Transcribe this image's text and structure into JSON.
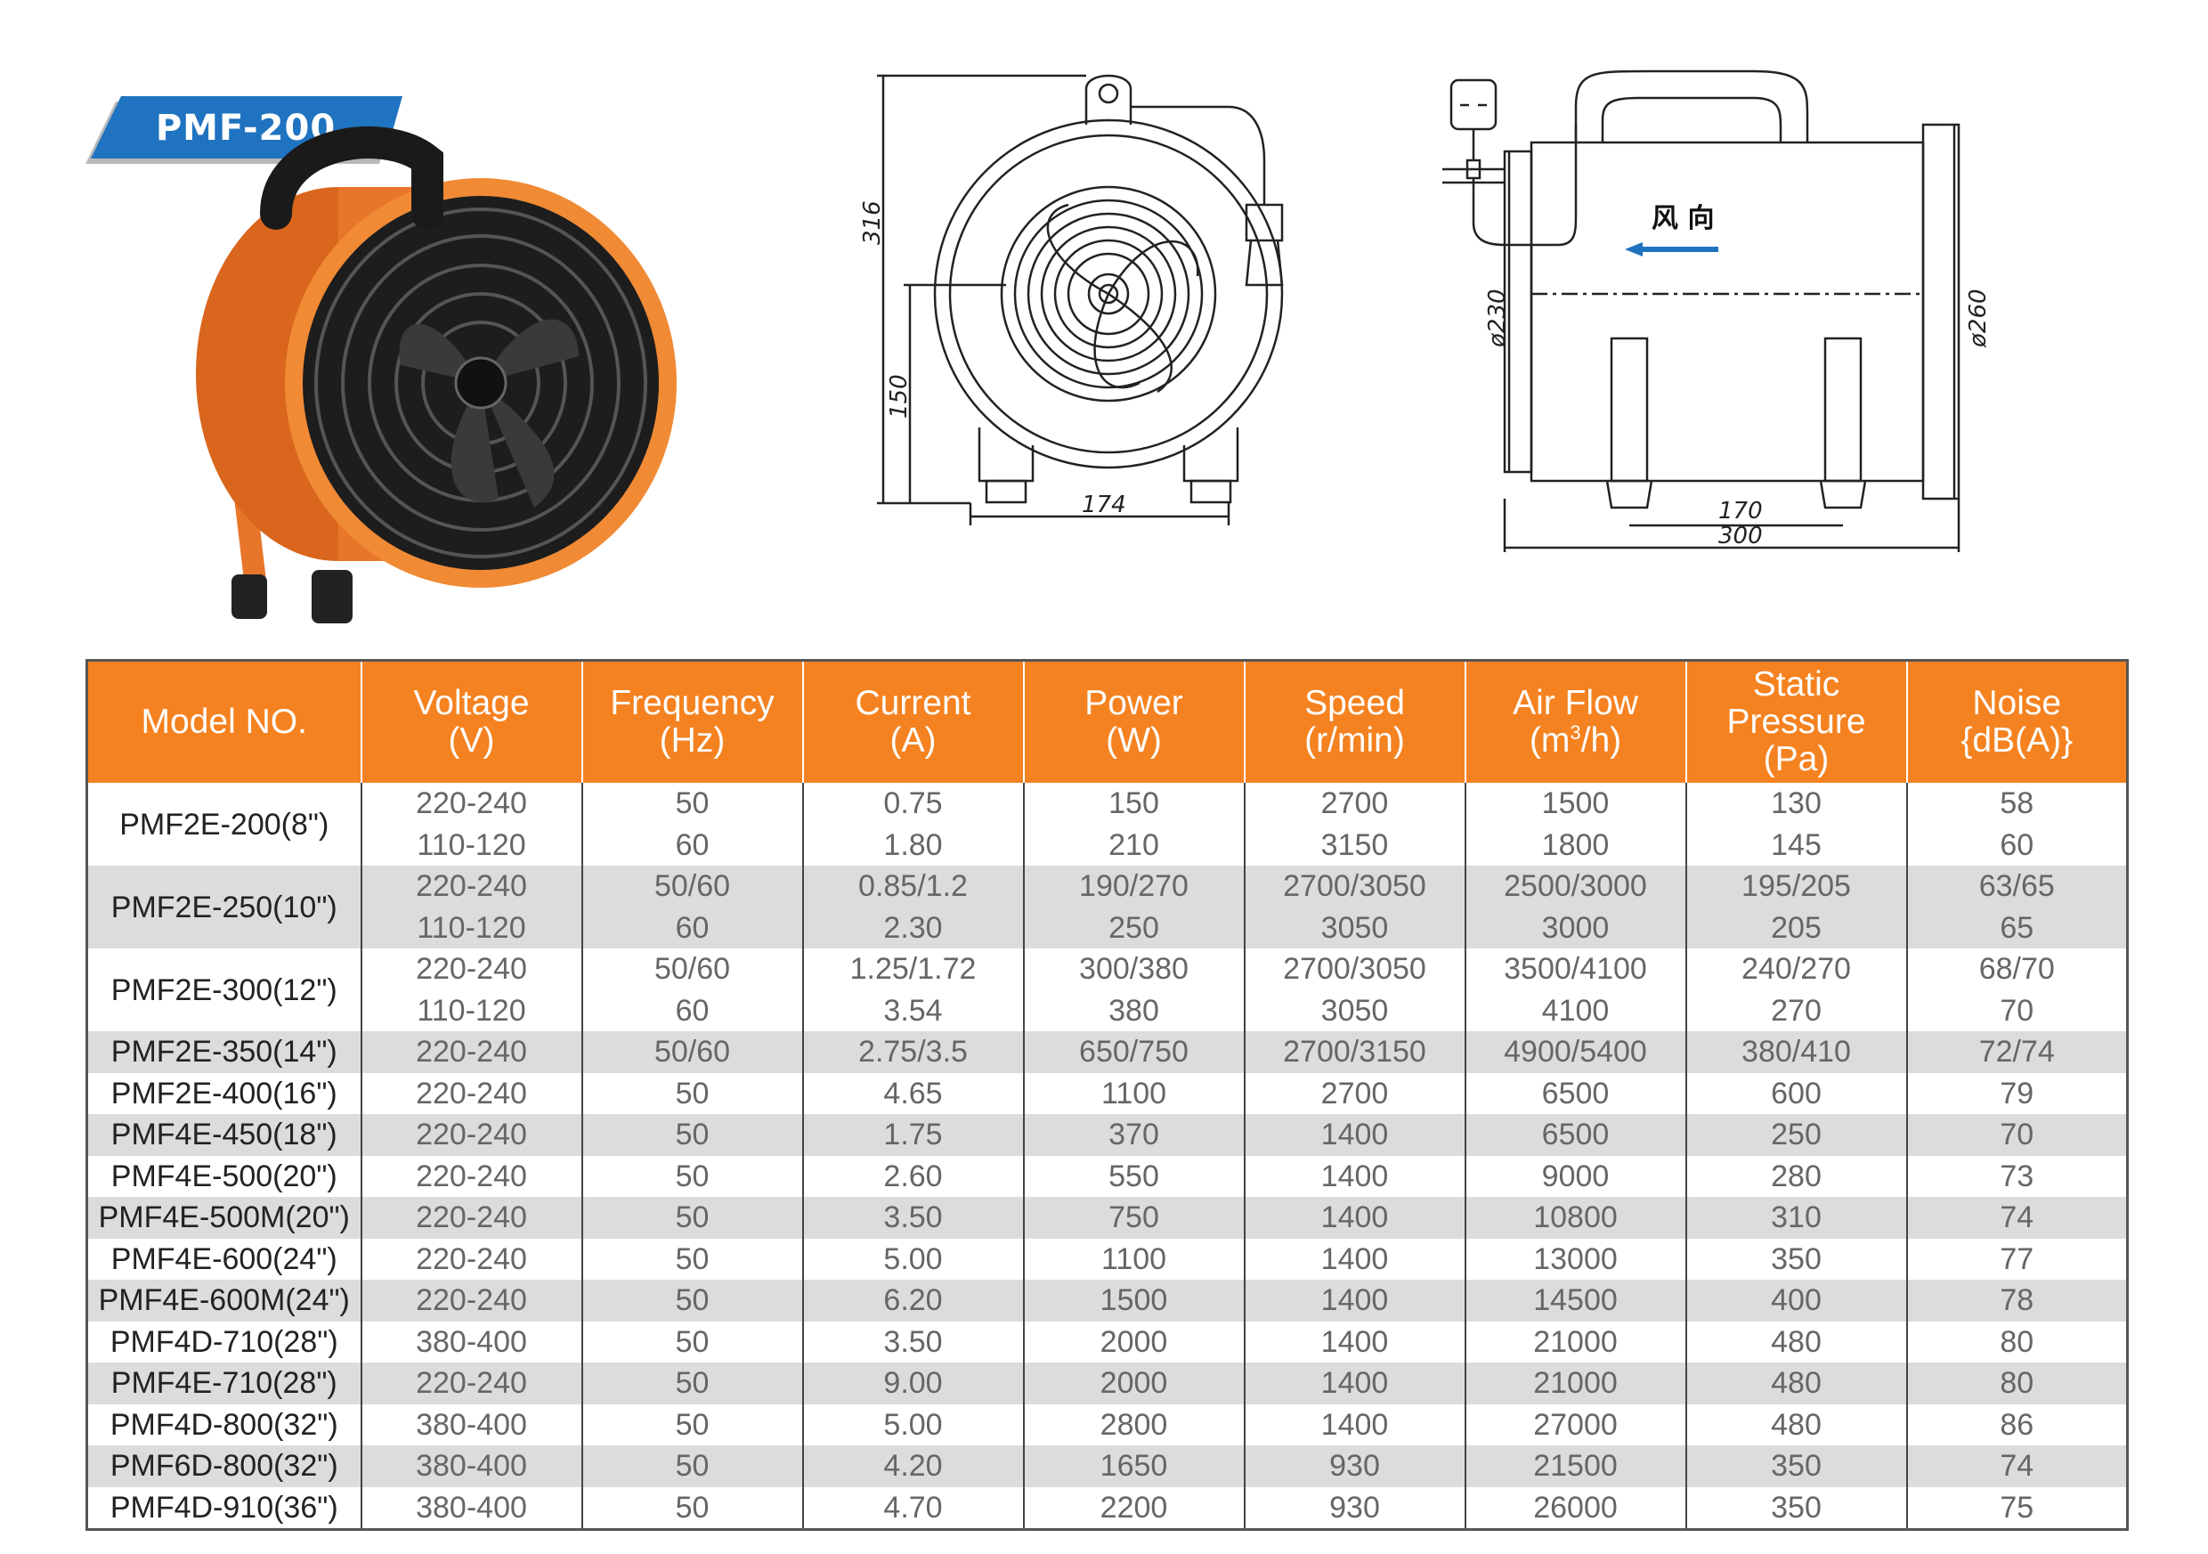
{
  "banner": {
    "label": "PMF-200"
  },
  "drawings": {
    "front": {
      "height": "316",
      "axis_height": "150",
      "width": "174"
    },
    "side": {
      "inlet_dia": "ø230",
      "outlet_dia": "ø260",
      "foot_span": "170",
      "length": "300",
      "airflow_label": "风 向"
    }
  },
  "table": {
    "headers": [
      {
        "line1": "Model NO.",
        "line2": "",
        "line3": ""
      },
      {
        "line1": "Voltage",
        "line2": "(V)",
        "line3": ""
      },
      {
        "line1": "Frequency",
        "line2": "(Hz)",
        "line3": ""
      },
      {
        "line1": "Current",
        "line2": "(A)",
        "line3": ""
      },
      {
        "line1": "Power",
        "line2": "(W)",
        "line3": ""
      },
      {
        "line1": "Speed",
        "line2": "(r/min)",
        "line3": ""
      },
      {
        "line1": "Air Flow",
        "line2": "(m",
        "sup": "3",
        "line2b": "/h)",
        "line3": ""
      },
      {
        "line1": "Static",
        "line2": "Pressure",
        "line3": "(Pa)"
      },
      {
        "line1": "Noise",
        "line2": "{dB(A)}",
        "line3": ""
      }
    ],
    "groups": [
      {
        "model": "PMF2E-200(8\")",
        "shade": false,
        "rows": [
          [
            "220-240",
            "50",
            "0.75",
            "150",
            "2700",
            "1500",
            "130",
            "58"
          ],
          [
            "110-120",
            "60",
            "1.80",
            "210",
            "3150",
            "1800",
            "145",
            "60"
          ]
        ]
      },
      {
        "model": "PMF2E-250(10\")",
        "shade": true,
        "rows": [
          [
            "220-240",
            "50/60",
            "0.85/1.2",
            "190/270",
            "2700/3050",
            "2500/3000",
            "195/205",
            "63/65"
          ],
          [
            "110-120",
            "60",
            "2.30",
            "250",
            "3050",
            "3000",
            "205",
            "65"
          ]
        ]
      },
      {
        "model": "PMF2E-300(12\")",
        "shade": false,
        "rows": [
          [
            "220-240",
            "50/60",
            "1.25/1.72",
            "300/380",
            "2700/3050",
            "3500/4100",
            "240/270",
            "68/70"
          ],
          [
            "110-120",
            "60",
            "3.54",
            "380",
            "3050",
            "4100",
            "270",
            "70"
          ]
        ]
      },
      {
        "model": "PMF2E-350(14\")",
        "shade": true,
        "rows": [
          [
            "220-240",
            "50/60",
            "2.75/3.5",
            "650/750",
            "2700/3150",
            "4900/5400",
            "380/410",
            "72/74"
          ]
        ]
      },
      {
        "model": "PMF2E-400(16\")",
        "shade": false,
        "rows": [
          [
            "220-240",
            "50",
            "4.65",
            "1100",
            "2700",
            "6500",
            "600",
            "79"
          ]
        ]
      },
      {
        "model": "PMF4E-450(18\")",
        "shade": true,
        "rows": [
          [
            "220-240",
            "50",
            "1.75",
            "370",
            "1400",
            "6500",
            "250",
            "70"
          ]
        ]
      },
      {
        "model": "PMF4E-500(20\")",
        "shade": false,
        "rows": [
          [
            "220-240",
            "50",
            "2.60",
            "550",
            "1400",
            "9000",
            "280",
            "73"
          ]
        ]
      },
      {
        "model": "PMF4E-500M(20\")",
        "shade": true,
        "rows": [
          [
            "220-240",
            "50",
            "3.50",
            "750",
            "1400",
            "10800",
            "310",
            "74"
          ]
        ]
      },
      {
        "model": "PMF4E-600(24\")",
        "shade": false,
        "rows": [
          [
            "220-240",
            "50",
            "5.00",
            "1100",
            "1400",
            "13000",
            "350",
            "77"
          ]
        ]
      },
      {
        "model": "PMF4E-600M(24\")",
        "shade": true,
        "rows": [
          [
            "220-240",
            "50",
            "6.20",
            "1500",
            "1400",
            "14500",
            "400",
            "78"
          ]
        ]
      },
      {
        "model": "PMF4D-710(28\")",
        "shade": false,
        "rows": [
          [
            "380-400",
            "50",
            "3.50",
            "2000",
            "1400",
            "21000",
            "480",
            "80"
          ]
        ]
      },
      {
        "model": "PMF4E-710(28\")",
        "shade": true,
        "rows": [
          [
            "220-240",
            "50",
            "9.00",
            "2000",
            "1400",
            "21000",
            "480",
            "80"
          ]
        ]
      },
      {
        "model": "PMF4D-800(32\")",
        "shade": false,
        "rows": [
          [
            "380-400",
            "50",
            "5.00",
            "2800",
            "1400",
            "27000",
            "480",
            "86"
          ]
        ]
      },
      {
        "model": "PMF6D-800(32\")",
        "shade": true,
        "rows": [
          [
            "380-400",
            "50",
            "4.20",
            "1650",
            "930",
            "21500",
            "350",
            "74"
          ]
        ]
      },
      {
        "model": "PMF4D-910(36\")",
        "shade": false,
        "rows": [
          [
            "380-400",
            "50",
            "4.70",
            "2200",
            "930",
            "26000",
            "350",
            "75"
          ]
        ]
      }
    ]
  }
}
